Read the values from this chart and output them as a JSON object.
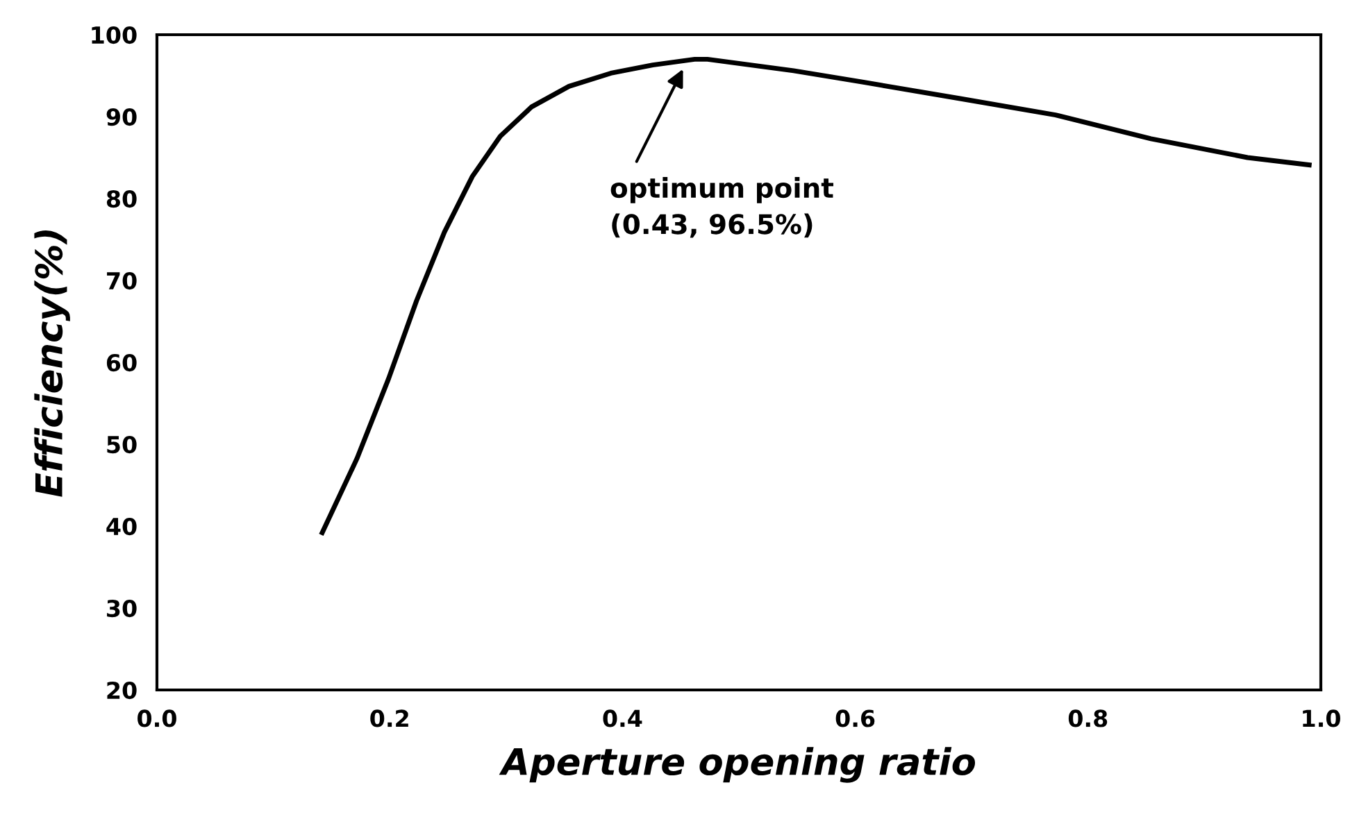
{
  "chart_data": {
    "type": "line",
    "xlabel": "Aperture opening ratio",
    "ylabel": "Efficiency(%)",
    "x": [
      0.142,
      0.172,
      0.199,
      0.223,
      0.247,
      0.271,
      0.295,
      0.322,
      0.354,
      0.39,
      0.426,
      0.462,
      0.473,
      0.547,
      0.607,
      0.69,
      0.772,
      0.854,
      0.937,
      0.99
    ],
    "series": [
      {
        "color": "#000000",
        "values": [
          39.2,
          48.3,
          58.0,
          67.5,
          75.9,
          82.7,
          87.6,
          91.2,
          93.7,
          95.3,
          96.3,
          97.0,
          97.0,
          95.6,
          94.2,
          92.2,
          90.2,
          87.3,
          85.0,
          84.1
        ]
      }
    ],
    "xlim": [
      0.0,
      1.0
    ],
    "xticks": [
      {
        "value": 0.0,
        "label": "0.0"
      },
      0.2,
      0.4,
      0.6,
      0.8,
      {
        "value": 1.0,
        "label": "1.0"
      }
    ],
    "ylim": [
      20,
      100
    ],
    "yticks": [
      20,
      30,
      40,
      50,
      60,
      70,
      80,
      90,
      100
    ],
    "grid": false,
    "marker": "none",
    "line_style": "solid",
    "annotations": [
      {
        "text": "optimum point\n(0.43, 96.5%)",
        "x": 0.452,
        "y": 95.8
      }
    ]
  }
}
